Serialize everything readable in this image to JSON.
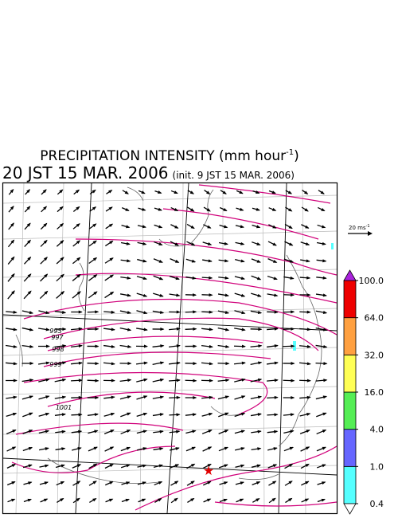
{
  "title": {
    "text": "PRECIPITATION INTENSITY (mm hour",
    "exponent": "-1",
    "close": ")"
  },
  "valid_time": "20 JST 15 MAR. 2006",
  "init_time": "(init. 9 JST 15 MAR. 2006)",
  "wind_scale": {
    "label": "20 ms",
    "exponent": "-1"
  },
  "map": {
    "contour_labels": [
      995,
      997,
      998,
      999,
      1001
    ]
  },
  "colorbar": {
    "levels": [
      {
        "value": 0.4,
        "label": "0.4"
      },
      {
        "value": 1,
        "label": "1.0"
      },
      {
        "value": 4,
        "label": "4.0"
      },
      {
        "value": 16,
        "label": "16.0"
      },
      {
        "value": 32,
        "label": "32.0"
      },
      {
        "value": 64,
        "label": "64.0"
      },
      {
        "value": 100,
        "label": "100.0"
      }
    ],
    "colors": [
      "#55ffff",
      "#6666ff",
      "#55ee55",
      "#ffff55",
      "#ffa040",
      "#ee0000"
    ],
    "under_color": "#ffffff",
    "over_color": "#aa22dd"
  }
}
